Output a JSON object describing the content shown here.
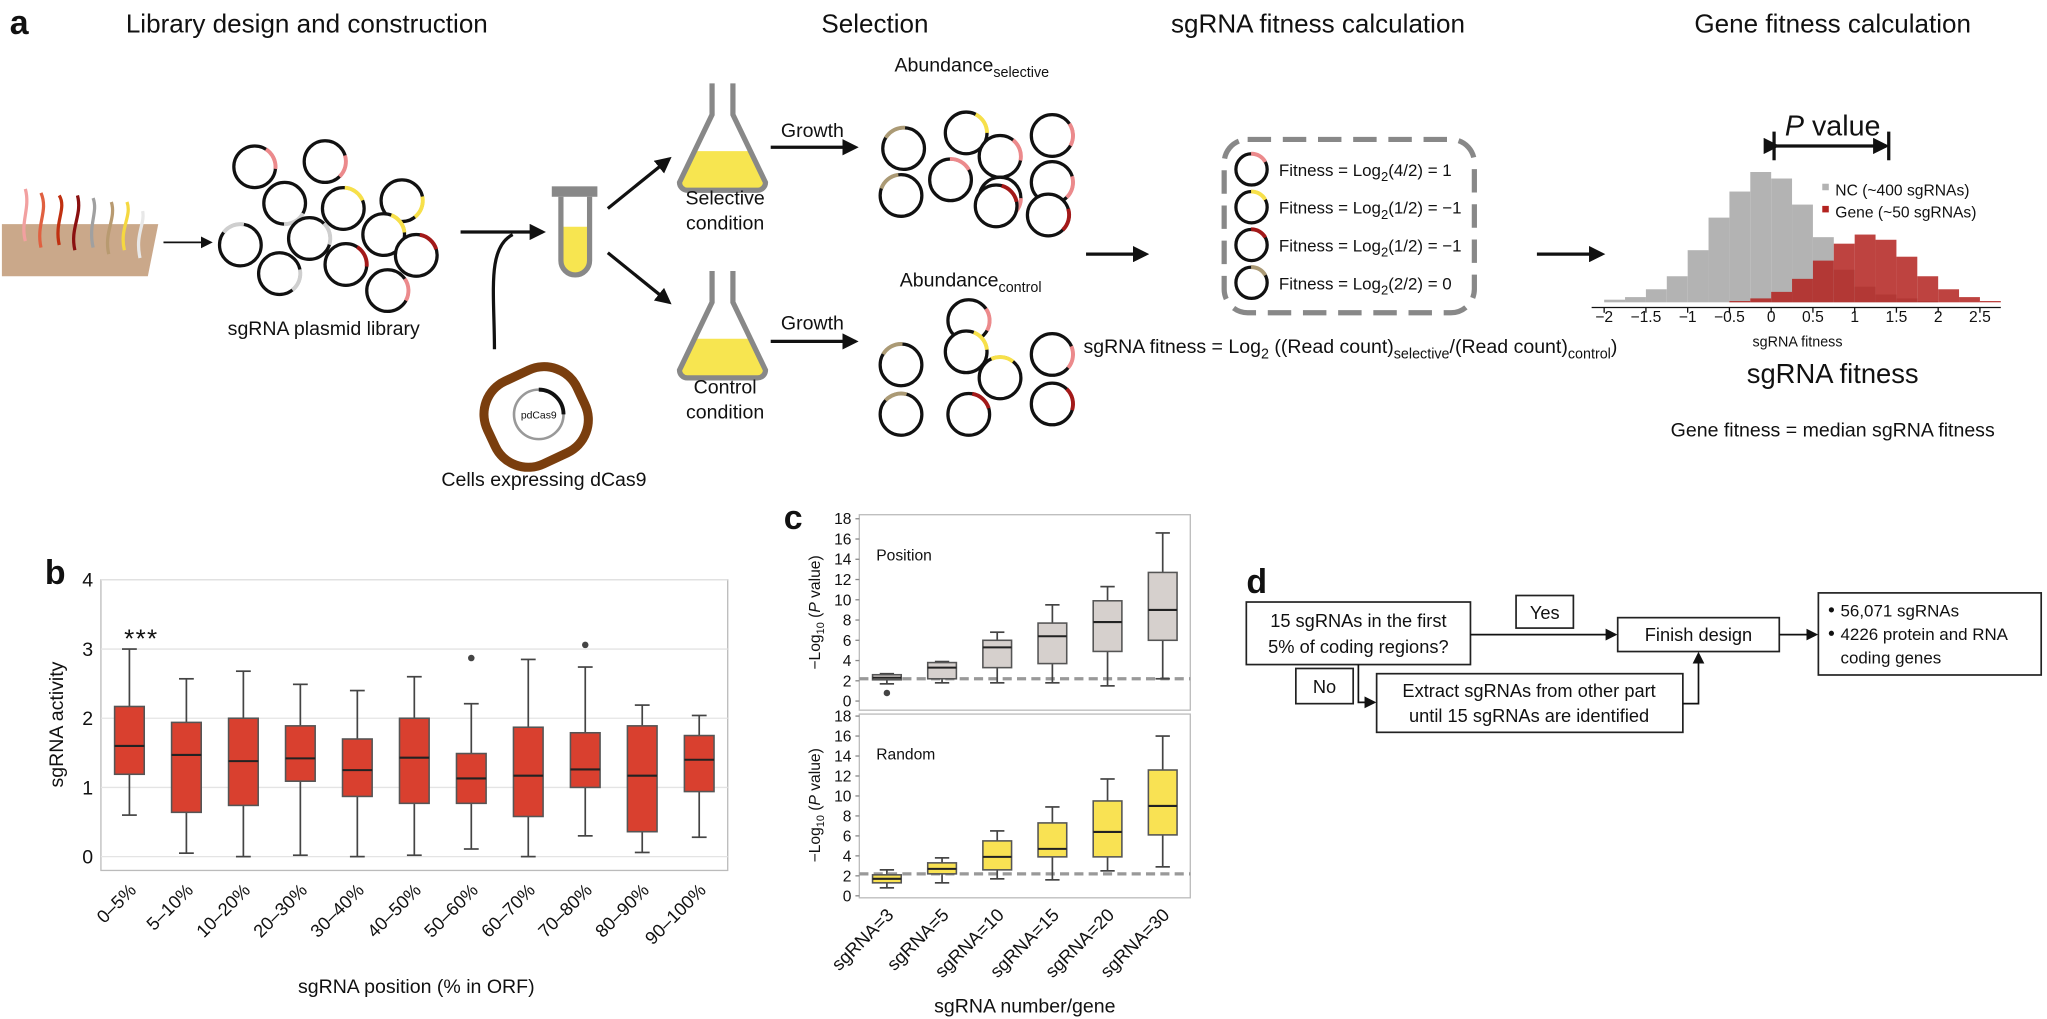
{
  "panel_a": {
    "letter": "a",
    "headers": [
      "Library design and construction",
      "Selection",
      "sgRNA fitness calculation",
      "Gene fitness calculation"
    ],
    "library_label": "sgRNA plasmid library",
    "cells_label": "Cells expressing dCas9",
    "plasmid_label": "pdCas9",
    "growth_labels": [
      "Growth",
      "Growth"
    ],
    "selective_label": [
      "Selective",
      "condition"
    ],
    "control_label": [
      "Control",
      "condition"
    ],
    "abundance_selective": [
      "Abundance",
      "selective"
    ],
    "abundance_control": [
      "Abundance",
      "control"
    ],
    "fitness_lines": [
      [
        "Fitness = Log",
        "2",
        "(4/2) = 1"
      ],
      [
        "Fitness = Log",
        "2",
        "(1/2) = −1"
      ],
      [
        "Fitness = Log",
        "2",
        "(1/2) = −1"
      ],
      [
        "Fitness = Log",
        "2",
        "(2/2) = 0"
      ]
    ],
    "formula": [
      "sgRNA fitness = Log",
      "2",
      " ((Read count)",
      "selective",
      "/(Read count)",
      "control",
      ")"
    ],
    "p_value": [
      "P",
      " value"
    ],
    "gene_fitness": "Gene fitness = median sgRNA fitness"
  },
  "chart_data": [
    {
      "type": "histogram",
      "title": "sgRNA fitness",
      "xlabel": "sgRNA fitness",
      "bins": [
        -2,
        -1.75,
        -1.5,
        -1.25,
        -1,
        -0.75,
        -0.5,
        -0.25,
        0,
        0.25,
        0.5,
        0.75,
        1,
        1.25,
        1.5,
        1.75,
        2,
        2.25,
        2.5,
        2.75
      ],
      "series": [
        {
          "name": "NC (~400 sgRNAs)",
          "color": "#b3b3b3",
          "values": [
            2,
            4,
            10,
            20,
            40,
            65,
            85,
            100,
            95,
            75,
            50,
            25,
            12,
            6,
            3,
            1,
            0,
            0,
            0
          ]
        },
        {
          "name": "Gene (~50 sgRNAs)",
          "color": "#b3221f",
          "values": [
            0,
            0,
            0,
            0,
            0,
            0,
            1,
            3,
            8,
            18,
            32,
            45,
            52,
            48,
            35,
            20,
            10,
            4,
            1
          ]
        }
      ],
      "xlim": [
        -2.15,
        2.75
      ],
      "ylim": [
        0,
        115
      ],
      "xticks": [
        {
          "value": -2,
          "label": "−2"
        },
        {
          "value": -1.5,
          "label": "−1.5"
        },
        {
          "value": -1,
          "label": "−1"
        },
        {
          "value": -0.5,
          "label": "−0.5"
        },
        0,
        0.5,
        1,
        1.5,
        2,
        2.5
      ]
    },
    {
      "type": "box",
      "annotation": "***",
      "letter": "b",
      "ylabel": [
        "sgRNA activity"
      ],
      "xlabel": "sgRNA position (% in ORF)",
      "color": "#d9402f",
      "grid": true,
      "categories": [
        "0–5%",
        "5–10%",
        "10–20%",
        "20–30%",
        "30–40%",
        "40–50%",
        "50–60%",
        "60–70%",
        "70–80%",
        "80–90%",
        "90–100%"
      ],
      "min": [
        0.6,
        0.05,
        0,
        0.02,
        0,
        0.02,
        0.11,
        0,
        0.3,
        0.06,
        0.28
      ],
      "q1": [
        1.19,
        0.64,
        0.74,
        1.09,
        0.87,
        0.77,
        0.77,
        0.58,
        1.0,
        0.36,
        0.94
      ],
      "median": [
        1.6,
        1.47,
        1.38,
        1.42,
        1.25,
        1.43,
        1.13,
        1.17,
        1.26,
        1.17,
        1.4
      ],
      "q3": [
        2.17,
        1.94,
        2.0,
        1.89,
        1.7,
        2.0,
        1.49,
        1.87,
        1.79,
        1.89,
        1.75
      ],
      "max": [
        3.0,
        2.57,
        2.68,
        2.49,
        2.4,
        2.6,
        2.21,
        2.85,
        2.74,
        2.19,
        2.04
      ],
      "outliers": [
        null,
        null,
        null,
        null,
        null,
        null,
        2.87,
        null,
        3.06,
        null,
        null
      ],
      "ylim": [
        -0.2,
        4
      ],
      "yticks": [
        0,
        1,
        2,
        3,
        4
      ]
    },
    {
      "type": "box",
      "letter": "c",
      "title": "Position",
      "ylabel": [
        "−Log",
        "10",
        " (",
        "P",
        " value)"
      ],
      "color": "#d6d0cd",
      "grid": false,
      "min": [
        1.7,
        1.8,
        1.8,
        1.8,
        1.5,
        2.2
      ],
      "q1": [
        2.1,
        2.2,
        3.3,
        3.7,
        4.9,
        6.0
      ],
      "median": [
        2.3,
        3.3,
        5.3,
        6.4,
        7.8,
        9.0
      ],
      "q3": [
        2.6,
        3.8,
        6.0,
        7.7,
        9.9,
        12.7
      ],
      "max": [
        2.7,
        3.9,
        6.8,
        9.5,
        11.3,
        16.6
      ],
      "outliers": [
        0.8,
        null,
        null,
        null,
        null,
        null
      ],
      "threshold": 2.2,
      "ylim": [
        -0.9,
        18.4
      ],
      "yticks": [
        0,
        2,
        4,
        6,
        8,
        10,
        12,
        14,
        16,
        18
      ]
    },
    {
      "type": "box",
      "title": "Random",
      "ylabel": [
        "−Log",
        "10",
        " (",
        "P",
        " value)"
      ],
      "xlabel": "sgRNA number/gene",
      "color": "#f9e253",
      "grid": false,
      "categories": [
        "sgRNA=3",
        "sgRNA=5",
        "sgRNA=10",
        "sgRNA=15",
        "sgRNA=20",
        "sgRNA=30"
      ],
      "min": [
        0.8,
        1.3,
        1.7,
        1.6,
        2.5,
        2.9
      ],
      "q1": [
        1.3,
        2.2,
        2.6,
        3.9,
        3.9,
        6.1
      ],
      "median": [
        1.7,
        2.7,
        3.9,
        4.7,
        6.4,
        9.0
      ],
      "q3": [
        2.1,
        3.3,
        5.5,
        7.3,
        9.5,
        12.6
      ],
      "max": [
        2.6,
        3.8,
        6.5,
        8.9,
        11.7,
        16.0
      ],
      "outliers": [
        null,
        null,
        null,
        null,
        null,
        null
      ],
      "threshold": 2.2,
      "ylim": [
        -0.2,
        18.2
      ],
      "yticks": [
        0,
        2,
        4,
        6,
        8,
        10,
        12,
        14,
        16,
        18
      ]
    }
  ],
  "panel_d": {
    "letter": "d",
    "question": [
      "15 sgRNAs in the first",
      "5% of coding regions?"
    ],
    "yes": "Yes",
    "no": "No",
    "finish": "Finish design",
    "extract": [
      "Extract sgRNAs from other part",
      "until 15 sgRNAs are identified"
    ],
    "result": [
      "56,071 sgRNAs",
      "4226 protein and RNA",
      "coding genes"
    ]
  }
}
